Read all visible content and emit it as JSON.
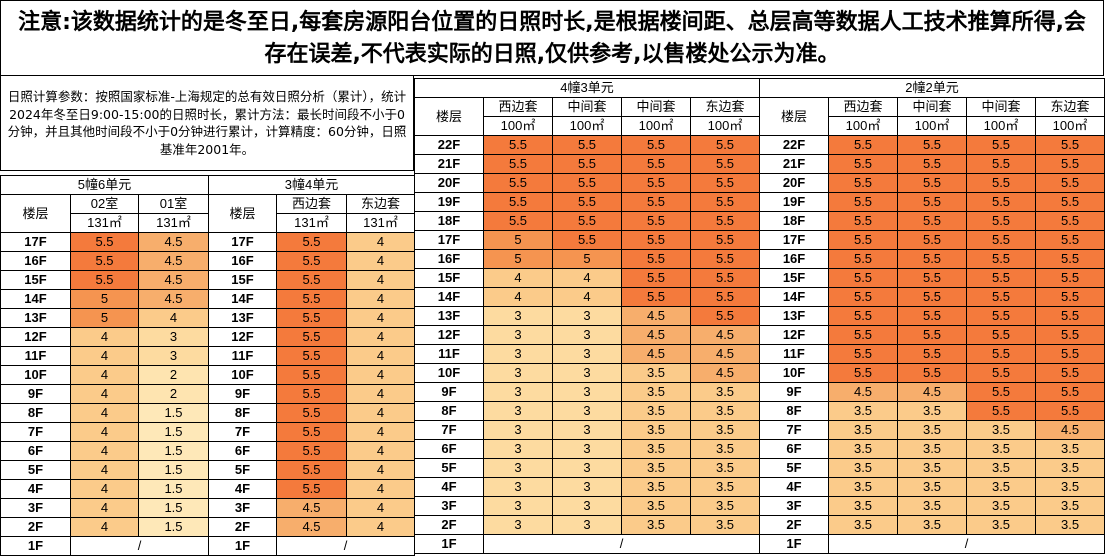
{
  "notice": "注意:该数据统计的是冬至日,每套房源阳台位置的日照时长,是根据楼间距、总层高等数据人工技术推算所得,会存在误差,不代表实际的日照,仅供参考,以售楼处公示为准。",
  "params": "日照计算参数：按照国家标准-上海规定的总有效日照分析（累计），统计2024年冬至日9:00-15:00的日照时长，累计方法：最长时间段不小于0分钟，并且其他时间段不小于0分钟进行累计，计算精度：60分钟，日照基准年2001年。",
  "floor_label": "楼层",
  "area": "100㎡",
  "area131": "131㎡",
  "buildings": {
    "b5u6": {
      "title": "5幢6单元",
      "units": [
        "02室",
        "01室"
      ],
      "area": "131㎡"
    },
    "b3u4": {
      "title": "3幢4单元",
      "units": [
        "西边套",
        "东边套"
      ],
      "area": "131㎡"
    },
    "b4u3": {
      "title": "4幢3单元",
      "units": [
        "西边套",
        "中间套",
        "中间套",
        "东边套"
      ],
      "area": "100㎡"
    },
    "b2u2": {
      "title": "2幢2单元",
      "units": [
        "西边套",
        "中间套",
        "中间套",
        "东边套"
      ],
      "area": "100㎡"
    }
  },
  "rows_left": [
    {
      "floor": "17F",
      "a": [
        "5.5",
        "4.5"
      ],
      "b": [
        "5.5",
        "4"
      ]
    },
    {
      "floor": "16F",
      "a": [
        "5.5",
        "4.5"
      ],
      "b": [
        "5.5",
        "4"
      ]
    },
    {
      "floor": "15F",
      "a": [
        "5.5",
        "4.5"
      ],
      "b": [
        "5.5",
        "4"
      ]
    },
    {
      "floor": "14F",
      "a": [
        "5",
        "4.5"
      ],
      "b": [
        "5.5",
        "4"
      ]
    },
    {
      "floor": "13F",
      "a": [
        "5",
        "4"
      ],
      "b": [
        "5.5",
        "4"
      ]
    },
    {
      "floor": "12F",
      "a": [
        "4",
        "3"
      ],
      "b": [
        "5.5",
        "4"
      ]
    },
    {
      "floor": "11F",
      "a": [
        "4",
        "3"
      ],
      "b": [
        "5.5",
        "4"
      ]
    },
    {
      "floor": "10F",
      "a": [
        "4",
        "2"
      ],
      "b": [
        "5.5",
        "4"
      ]
    },
    {
      "floor": "9F",
      "a": [
        "4",
        "2"
      ],
      "b": [
        "5.5",
        "4"
      ]
    },
    {
      "floor": "8F",
      "a": [
        "4",
        "1.5"
      ],
      "b": [
        "5.5",
        "4"
      ]
    },
    {
      "floor": "7F",
      "a": [
        "4",
        "1.5"
      ],
      "b": [
        "5.5",
        "4"
      ]
    },
    {
      "floor": "6F",
      "a": [
        "4",
        "1.5"
      ],
      "b": [
        "5.5",
        "4"
      ]
    },
    {
      "floor": "5F",
      "a": [
        "4",
        "1.5"
      ],
      "b": [
        "5.5",
        "4"
      ]
    },
    {
      "floor": "4F",
      "a": [
        "4",
        "1.5"
      ],
      "b": [
        "5.5",
        "4"
      ]
    },
    {
      "floor": "3F",
      "a": [
        "4",
        "1.5"
      ],
      "b": [
        "4.5",
        "4"
      ]
    },
    {
      "floor": "2F",
      "a": [
        "4",
        "1.5"
      ],
      "b": [
        "4.5",
        "4"
      ]
    }
  ],
  "rows_right": [
    {
      "floor": "22F",
      "c": [
        "5.5",
        "5.5",
        "5.5",
        "5.5"
      ],
      "d": [
        "5.5",
        "5.5",
        "5.5",
        "5.5"
      ]
    },
    {
      "floor": "21F",
      "c": [
        "5.5",
        "5.5",
        "5.5",
        "5.5"
      ],
      "d": [
        "5.5",
        "5.5",
        "5.5",
        "5.5"
      ]
    },
    {
      "floor": "20F",
      "c": [
        "5.5",
        "5.5",
        "5.5",
        "5.5"
      ],
      "d": [
        "5.5",
        "5.5",
        "5.5",
        "5.5"
      ]
    },
    {
      "floor": "19F",
      "c": [
        "5.5",
        "5.5",
        "5.5",
        "5.5"
      ],
      "d": [
        "5.5",
        "5.5",
        "5.5",
        "5.5"
      ]
    },
    {
      "floor": "18F",
      "c": [
        "5.5",
        "5.5",
        "5.5",
        "5.5"
      ],
      "d": [
        "5.5",
        "5.5",
        "5.5",
        "5.5"
      ]
    },
    {
      "floor": "17F",
      "c": [
        "5",
        "5.5",
        "5.5",
        "5.5"
      ],
      "d": [
        "5.5",
        "5.5",
        "5.5",
        "5.5"
      ]
    },
    {
      "floor": "16F",
      "c": [
        "5",
        "5",
        "5.5",
        "5.5"
      ],
      "d": [
        "5.5",
        "5.5",
        "5.5",
        "5.5"
      ]
    },
    {
      "floor": "15F",
      "c": [
        "4",
        "4",
        "5.5",
        "5.5"
      ],
      "d": [
        "5.5",
        "5.5",
        "5.5",
        "5.5"
      ]
    },
    {
      "floor": "14F",
      "c": [
        "4",
        "4",
        "5.5",
        "5.5"
      ],
      "d": [
        "5.5",
        "5.5",
        "5.5",
        "5.5"
      ]
    },
    {
      "floor": "13F",
      "c": [
        "3",
        "3",
        "4.5",
        "5.5"
      ],
      "d": [
        "5.5",
        "5.5",
        "5.5",
        "5.5"
      ]
    },
    {
      "floor": "12F",
      "c": [
        "3",
        "3",
        "4.5",
        "4.5"
      ],
      "d": [
        "5.5",
        "5.5",
        "5.5",
        "5.5"
      ]
    },
    {
      "floor": "11F",
      "c": [
        "3",
        "3",
        "4.5",
        "4.5"
      ],
      "d": [
        "5.5",
        "5.5",
        "5.5",
        "5.5"
      ]
    },
    {
      "floor": "10F",
      "c": [
        "3",
        "3",
        "3.5",
        "4.5"
      ],
      "d": [
        "5.5",
        "5.5",
        "5.5",
        "5.5"
      ]
    },
    {
      "floor": "9F",
      "c": [
        "3",
        "3",
        "3.5",
        "3.5"
      ],
      "d": [
        "4.5",
        "4.5",
        "5.5",
        "5.5"
      ]
    },
    {
      "floor": "8F",
      "c": [
        "3",
        "3",
        "3.5",
        "3.5"
      ],
      "d": [
        "3.5",
        "3.5",
        "5.5",
        "5.5"
      ]
    },
    {
      "floor": "7F",
      "c": [
        "3",
        "3",
        "3.5",
        "3.5"
      ],
      "d": [
        "3.5",
        "3.5",
        "3.5",
        "4.5"
      ]
    },
    {
      "floor": "6F",
      "c": [
        "3",
        "3",
        "3.5",
        "3.5"
      ],
      "d": [
        "3.5",
        "3.5",
        "3.5",
        "3.5"
      ]
    },
    {
      "floor": "5F",
      "c": [
        "3",
        "3",
        "3.5",
        "3.5"
      ],
      "d": [
        "3.5",
        "3.5",
        "3.5",
        "3.5"
      ]
    },
    {
      "floor": "4F",
      "c": [
        "3",
        "3",
        "3.5",
        "3.5"
      ],
      "d": [
        "3.5",
        "3.5",
        "3.5",
        "3.5"
      ]
    },
    {
      "floor": "3F",
      "c": [
        "3",
        "3",
        "3.5",
        "3.5"
      ],
      "d": [
        "3.5",
        "3.5",
        "3.5",
        "3.5"
      ]
    },
    {
      "floor": "2F",
      "c": [
        "3",
        "3",
        "3.5",
        "3.5"
      ],
      "d": [
        "3.5",
        "3.5",
        "3.5",
        "3.5"
      ]
    }
  ],
  "first_floor": "1F",
  "slash": "/"
}
